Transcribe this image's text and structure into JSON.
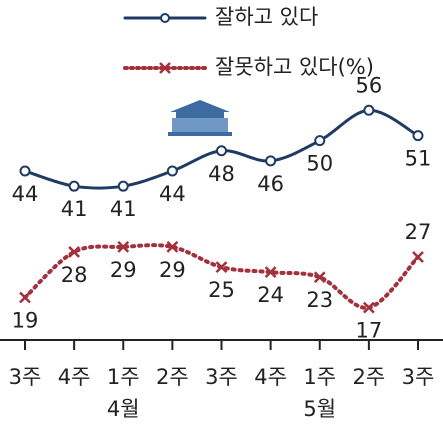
{
  "chart_data": {
    "type": "line",
    "categories": [
      "3주",
      "4주",
      "1주",
      "2주",
      "3주",
      "4주",
      "1주",
      "2주",
      "3주"
    ],
    "groups": [
      "4월",
      "5월"
    ],
    "series": [
      {
        "name": "잘하고 있다",
        "color": "#1f3b64",
        "values": [
          44,
          41,
          41,
          44,
          48,
          46,
          50,
          56,
          51
        ]
      },
      {
        "name": "잘못하고 있다(%)",
        "color": "#a3303c",
        "values": [
          19,
          28,
          29,
          29,
          25,
          24,
          23,
          17,
          27
        ]
      }
    ],
    "ylim": [
      10,
      61
    ]
  }
}
